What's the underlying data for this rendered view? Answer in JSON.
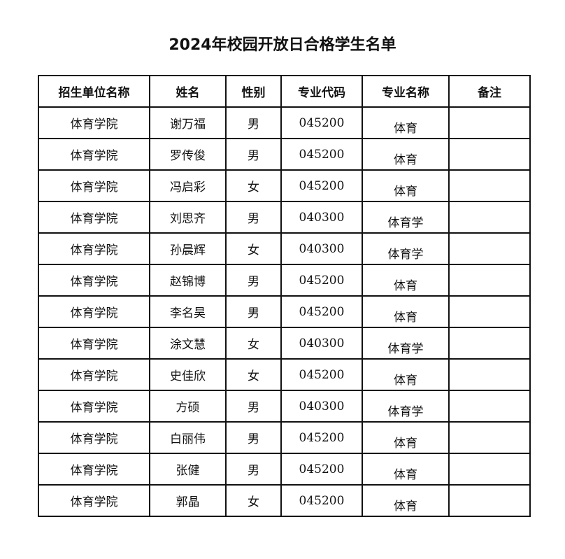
{
  "title": "2024年校园开放日合格学生名单",
  "headers": [
    "招生单位名称",
    "姓名",
    "性别",
    "专业代码",
    "专业名称",
    "备注"
  ],
  "rows": [
    [
      "体育学院",
      "谢万福",
      "男",
      "045200",
      "体育",
      ""
    ],
    [
      "体育学院",
      "罗传俊",
      "男",
      "045200",
      "体育",
      ""
    ],
    [
      "体育学院",
      "冯启彩",
      "女",
      "045200",
      "体育",
      ""
    ],
    [
      "体育学院",
      "刘思齐",
      "男",
      "040300",
      "体育学",
      ""
    ],
    [
      "体育学院",
      "孙晨辉",
      "女",
      "040300",
      "体育学",
      ""
    ],
    [
      "体育学院",
      "赵锦博",
      "男",
      "045200",
      "体育",
      ""
    ],
    [
      "体育学院",
      "李名昊",
      "男",
      "045200",
      "体育",
      ""
    ],
    [
      "体育学院",
      "涂文慧",
      "女",
      "040300",
      "体育学",
      ""
    ],
    [
      "体育学院",
      "史佳欣",
      "女",
      "045200",
      "体育",
      ""
    ],
    [
      "体育学院",
      "方硕",
      "男",
      "040300",
      "体育学",
      ""
    ],
    [
      "体育学院",
      "白丽伟",
      "男",
      "045200",
      "体育",
      ""
    ],
    [
      "体育学院",
      "张健",
      "男",
      "045200",
      "体育",
      ""
    ],
    [
      "体育学院",
      "郭晶",
      "女",
      "045200",
      "体育",
      ""
    ]
  ]
}
